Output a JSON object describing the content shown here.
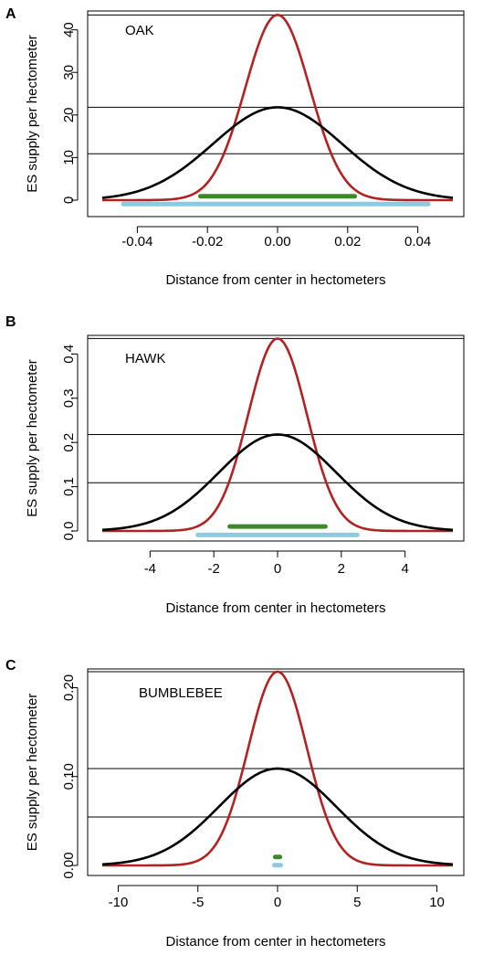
{
  "chart_data": [
    {
      "type": "line",
      "panel": "A",
      "species": "OAK",
      "xlabel": "Distance from center in hectometers",
      "ylabel": "ES supply per hectometer",
      "xlim": [
        -0.05,
        0.05
      ],
      "ylim": [
        0,
        44
      ],
      "xticks": [
        -0.04,
        -0.02,
        0.0,
        0.02,
        0.04
      ],
      "xtick_labels": [
        "-0.04",
        "-0.02",
        "0.00",
        "0.02",
        "0.04"
      ],
      "yticks": [
        0,
        10,
        20,
        30,
        40
      ],
      "ytick_labels": [
        "0",
        "10",
        "20",
        "30",
        "40"
      ],
      "hlines": [
        43.5,
        21.8,
        10.9
      ],
      "series": [
        {
          "color": "#b22222",
          "sd": 0.0092,
          "peak": 43.5,
          "xrange": [
            -0.05,
            0.05
          ]
        },
        {
          "color": "#000000",
          "sd": 0.0184,
          "peak": 21.8,
          "xrange": [
            -0.05,
            0.05
          ]
        }
      ],
      "bars": [
        {
          "color": "#3a8a2a",
          "x": [
            -0.022,
            0.022
          ],
          "y": 0.9
        },
        {
          "color": "#8ec9e0",
          "x": [
            -0.044,
            0.043
          ],
          "y": -0.9
        }
      ]
    },
    {
      "type": "line",
      "panel": "B",
      "species": "HAWK",
      "xlabel": "Distance from center in hectometers",
      "ylabel": "ES supply per hectometer",
      "xlim": [
        -5.5,
        5.5
      ],
      "ylim": [
        0,
        0.44
      ],
      "xticks": [
        -4,
        -2,
        0,
        2,
        4
      ],
      "xtick_labels": [
        "-4",
        "-2",
        "0",
        "2",
        "4"
      ],
      "yticks": [
        0.0,
        0.1,
        0.2,
        0.3,
        0.4
      ],
      "ytick_labels": [
        "0.0",
        "0.1",
        "0.2",
        "0.3",
        "0.4"
      ],
      "hlines": [
        0.435,
        0.218,
        0.109
      ],
      "series": [
        {
          "color": "#b22222",
          "sd": 0.92,
          "peak": 0.435,
          "xrange": [
            -5.5,
            5.5
          ]
        },
        {
          "color": "#000000",
          "sd": 1.84,
          "peak": 0.218,
          "xrange": [
            -5.5,
            5.5
          ]
        }
      ],
      "bars": [
        {
          "color": "#3a8a2a",
          "x": [
            -1.5,
            1.5
          ],
          "y": 0.01
        },
        {
          "color": "#8ec9e0",
          "x": [
            -2.5,
            2.5
          ],
          "y": -0.009
        }
      ]
    },
    {
      "type": "line",
      "panel": "C",
      "species": "BUMBLEBEE",
      "xlabel": "Distance from center in hectometers",
      "ylabel": "ES supply per hectometer",
      "xlim": [
        -11,
        11
      ],
      "ylim": [
        0,
        0.22
      ],
      "xticks": [
        -10,
        -5,
        0,
        5,
        10
      ],
      "xtick_labels": [
        "-10",
        "-5",
        "0",
        "5",
        "10"
      ],
      "yticks": [
        0.0,
        0.1,
        0.2
      ],
      "ytick_labels": [
        "0.00",
        "0.10",
        "0.20"
      ],
      "hlines": [
        0.218,
        0.109,
        0.0545
      ],
      "series": [
        {
          "color": "#b22222",
          "sd": 1.84,
          "peak": 0.218,
          "xrange": [
            -11,
            11
          ]
        },
        {
          "color": "#000000",
          "sd": 3.68,
          "peak": 0.109,
          "xrange": [
            -11,
            11
          ]
        }
      ],
      "bars": [
        {
          "color": "#3a8a2a",
          "x": [
            -0.15,
            0.15
          ],
          "y": 0.0095
        },
        {
          "color": "#8ec9e0",
          "x": [
            -0.2,
            0.2
          ],
          "y": 0.0002
        }
      ]
    }
  ]
}
